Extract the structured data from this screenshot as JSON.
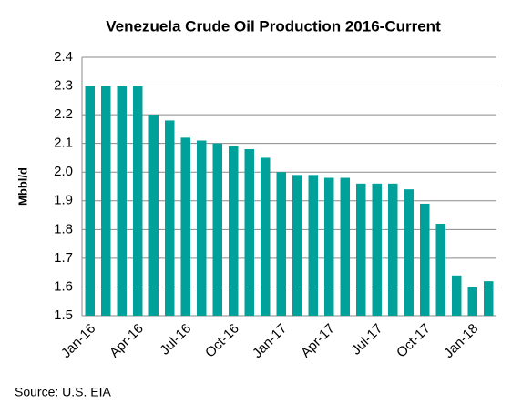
{
  "chart_data": {
    "type": "bar",
    "title": "Venezuela Crude Oil Production 2016-Current",
    "y_label": "Mbbl/d",
    "source": "Source: U.S. EIA",
    "categories": [
      "Jan-16",
      null,
      null,
      "Apr-16",
      null,
      null,
      "Jul-16",
      null,
      null,
      "Oct-16",
      null,
      null,
      "Jan-17",
      null,
      null,
      "Apr-17",
      null,
      null,
      "Jul-17",
      null,
      null,
      "Oct-17",
      null,
      null,
      "Jan-18",
      null
    ],
    "values": [
      2.3,
      2.3,
      2.3,
      2.3,
      2.2,
      2.18,
      2.12,
      2.11,
      2.1,
      2.09,
      2.08,
      2.05,
      2.0,
      1.99,
      1.99,
      1.98,
      1.98,
      1.96,
      1.96,
      1.96,
      1.94,
      1.89,
      1.82,
      1.64,
      1.6,
      1.62
    ],
    "color": "#00a19a",
    "ylim": [
      1.5,
      2.4
    ],
    "yticks": [
      1.5,
      1.6,
      1.7,
      1.8,
      1.9,
      {
        "value": 2,
        "label": "2.0"
      },
      2.1,
      2.2,
      2.3,
      2.4
    ],
    "grid": true
  }
}
